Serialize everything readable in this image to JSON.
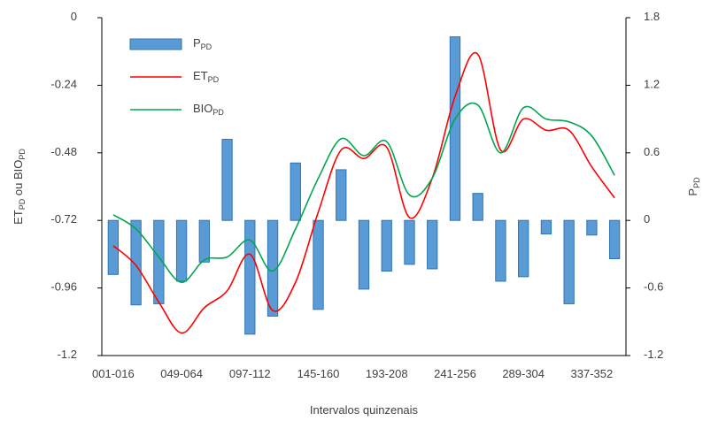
{
  "chart_data": {
    "type": "bar-line",
    "x_label": "Intervalos quinzenais",
    "y_label": "ETPD ou BIOPD",
    "y2_label": "PPD",
    "categories": [
      "001-016",
      null,
      null,
      "049-064",
      null,
      null,
      "097-112",
      null,
      null,
      "145-160",
      null,
      null,
      "193-208",
      null,
      null,
      "241-256",
      null,
      null,
      "289-304",
      null,
      null,
      "337-352",
      null
    ],
    "ylim": [
      -1.2,
      0
    ],
    "yticks": [
      0,
      -0.24,
      -0.48,
      -0.72,
      -0.96,
      -1.2
    ],
    "y2lim": [
      -1.2,
      1.8
    ],
    "y2ticks": [
      1.8,
      1.2,
      0.6,
      0,
      -0.6,
      -1.2
    ],
    "legend": "top-left",
    "series": [
      {
        "name": "PPD",
        "type": "bar",
        "axis": "y2",
        "color": "#5b9bd5",
        "values": [
          -0.48,
          -0.75,
          -0.74,
          -0.54,
          -0.37,
          0.72,
          -1.01,
          -0.85,
          0.51,
          -0.79,
          0.45,
          -0.61,
          -0.45,
          -0.39,
          -0.43,
          1.63,
          0.24,
          -0.54,
          -0.5,
          -0.12,
          -0.74,
          -0.13,
          -0.34
        ]
      },
      {
        "name": "ETPD",
        "type": "line",
        "color": "#ff0000",
        "values": [
          -0.81,
          -0.88,
          -1.01,
          -1.12,
          -1.03,
          -0.97,
          -0.84,
          -1.04,
          -0.94,
          -0.69,
          -0.47,
          -0.5,
          -0.46,
          -0.71,
          -0.57,
          -0.28,
          -0.13,
          -0.47,
          -0.36,
          -0.4,
          -0.4,
          -0.53,
          -0.64
        ]
      },
      {
        "name": "BIOPD",
        "type": "line",
        "color": "#00a650",
        "values": [
          -0.7,
          -0.75,
          -0.85,
          -0.94,
          -0.86,
          -0.85,
          -0.79,
          -0.9,
          -0.75,
          -0.57,
          -0.43,
          -0.49,
          -0.44,
          -0.63,
          -0.57,
          -0.36,
          -0.31,
          -0.48,
          -0.32,
          -0.36,
          -0.37,
          -0.42,
          -0.56
        ]
      }
    ]
  }
}
